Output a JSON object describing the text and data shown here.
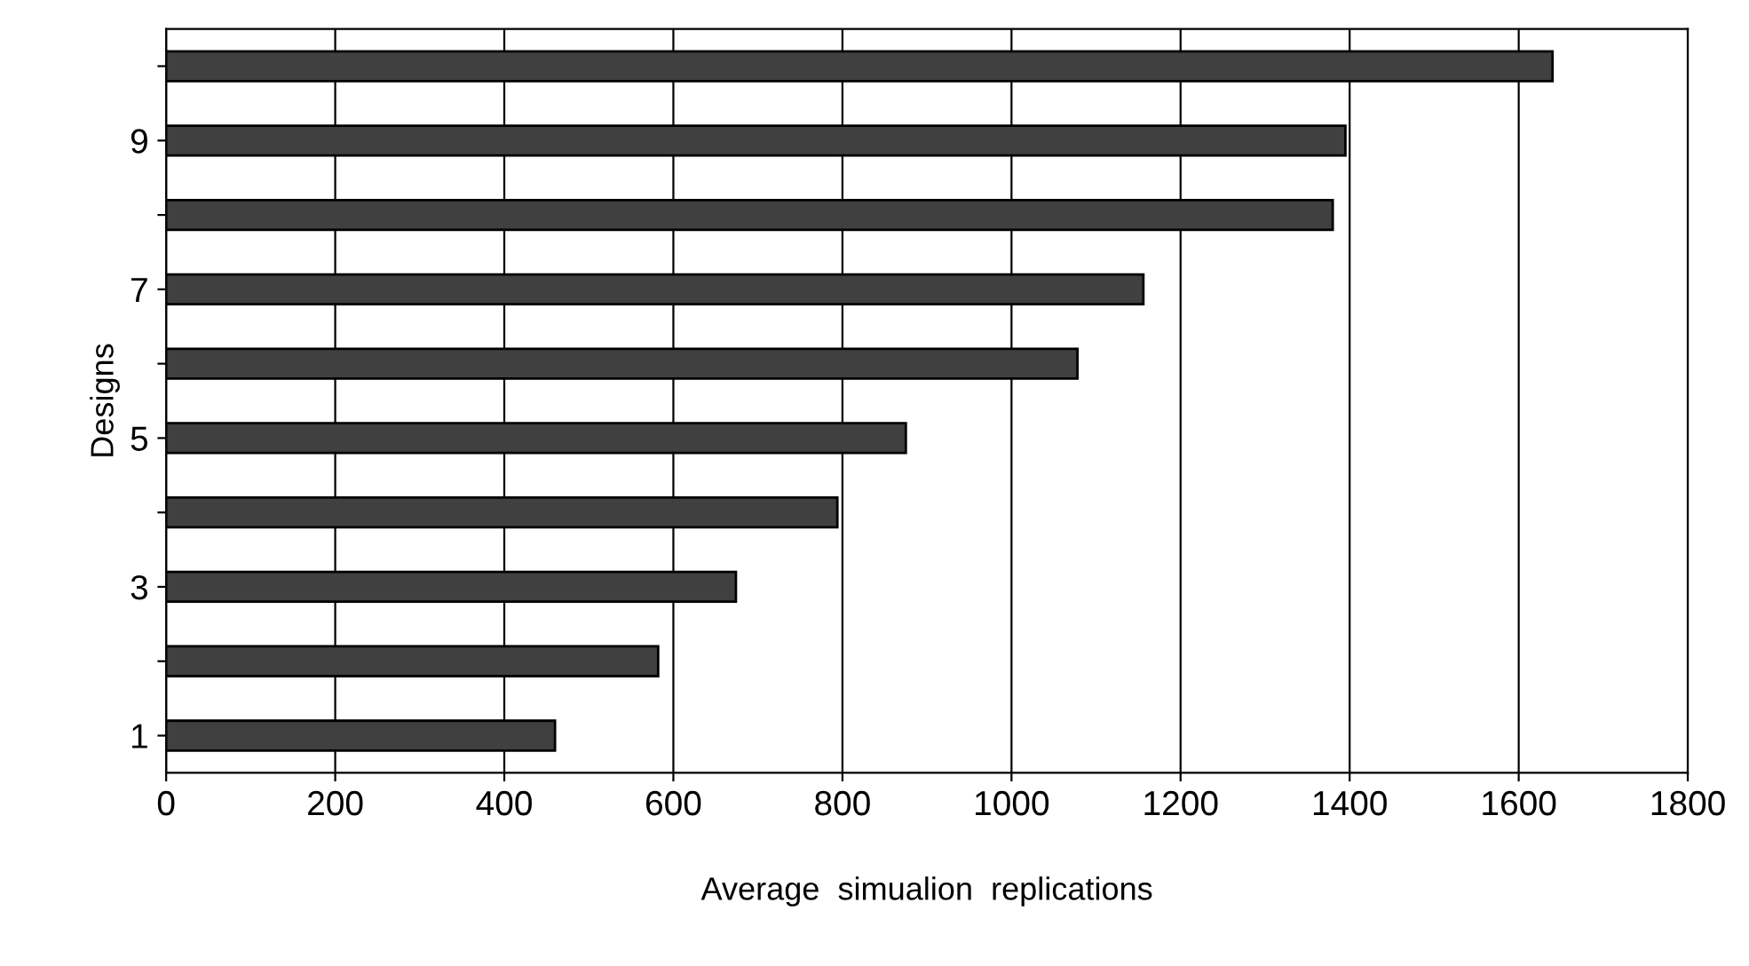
{
  "chart_data": {
    "type": "bar",
    "orientation": "horizontal",
    "categories": [
      null,
      "9",
      null,
      "7",
      null,
      "5",
      null,
      "3",
      null,
      "1"
    ],
    "values": [
      1640,
      1395,
      1380,
      1156,
      1078,
      875,
      794,
      674,
      582,
      460
    ],
    "color": "#404040",
    "xlabel": "Average  simualion  replications",
    "ylabel": "Designs",
    "xlim": [
      0,
      1800
    ],
    "xticks": [
      0,
      200,
      400,
      600,
      800,
      1000,
      1200,
      1400,
      1600,
      1800
    ],
    "grid": "x",
    "legend": false
  }
}
